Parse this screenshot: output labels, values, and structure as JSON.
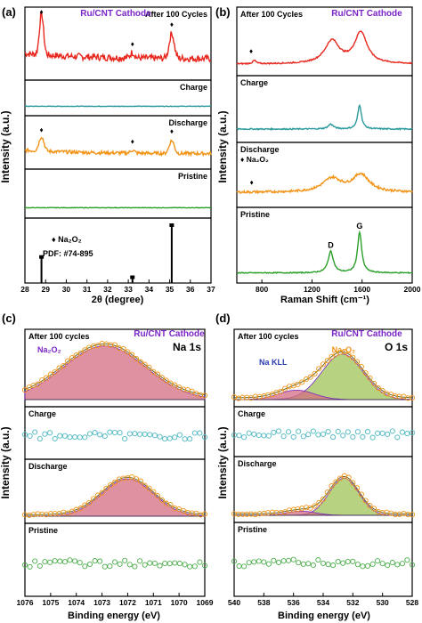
{
  "colors": {
    "red": "#e8281e",
    "teal": "#2a9a9c",
    "orange": "#f29418",
    "green": "#2aa02a",
    "purple": "#7b25c9",
    "black": "#000000",
    "na_fill": "#d36d82",
    "o_fill": "#9fc356",
    "fit_orange": "#f2a250",
    "teal_circle": "#4db8c0",
    "green_circle": "#4cae4c"
  },
  "chart_data": [
    {
      "type": "line",
      "panel": "(a)",
      "title": "Ru/CNT Cathode",
      "xlabel": "2θ (degree)",
      "ylabel": "Intensity (a.u.)",
      "xlim": [
        28,
        37
      ],
      "xticks": [
        "28",
        "29",
        "30",
        "31",
        "32",
        "33",
        "34",
        "35",
        "36",
        "37"
      ],
      "marker_symbol": "♦",
      "subplots": [
        {
          "label": "After 100 Cycles",
          "color": "red",
          "peaks": [
            {
              "x": 28.8,
              "h": 0.9,
              "w": 0.1
            },
            {
              "x": 35.1,
              "h": 0.55,
              "w": 0.12
            },
            {
              "x": 33.2,
              "h": 0.12,
              "w": 0.1
            }
          ],
          "diamonds": [
            28.8,
            33.2,
            35.1
          ],
          "base": 0.35,
          "noise": 0.15
        },
        {
          "label": "Charge",
          "color": "teal",
          "peaks": [],
          "diamonds": [],
          "base": 0.3,
          "noise": 0.04
        },
        {
          "label": "Discharge",
          "color": "orange",
          "peaks": [
            {
              "x": 28.8,
              "h": 0.5,
              "w": 0.12
            },
            {
              "x": 35.1,
              "h": 0.45,
              "w": 0.12
            },
            {
              "x": 33.2,
              "h": 0.1,
              "w": 0.1
            }
          ],
          "diamonds": [
            28.8,
            33.2,
            35.1
          ],
          "base": 0.35,
          "noise": 0.12
        },
        {
          "label": "Pristine",
          "color": "green",
          "peaks": [],
          "diamonds": [],
          "base": 0.2,
          "noise": 0.02
        }
      ],
      "reference": {
        "legend": "Na₂O₂",
        "pdf": "PDF: #74-895",
        "sticks": [
          {
            "x": 28.8,
            "h": 0.45
          },
          {
            "x": 33.2,
            "h": 0.1
          },
          {
            "x": 35.1,
            "h": 1.0
          }
        ]
      }
    },
    {
      "type": "line",
      "panel": "(b)",
      "title": "Ru/CNT Cathode",
      "xlabel": "Raman Shift (cm⁻¹)",
      "ylabel": "Intensity (a.u.)",
      "xlim": [
        600,
        2000
      ],
      "xticks": [
        "800",
        "1200",
        "1600",
        "2000"
      ],
      "subplots": [
        {
          "label": "After 100 Cycles",
          "color": "red",
          "peaks": [
            {
              "x": 1360,
              "h": 0.55,
              "w": 70
            },
            {
              "x": 1590,
              "h": 0.75,
              "w": 60
            },
            {
              "x": 740,
              "h": 0.08,
              "w": 15
            }
          ],
          "diamonds": [
            735
          ],
          "base": 0.15,
          "noise": 0.03
        },
        {
          "label": "Charge",
          "color": "teal",
          "peaks": [
            {
              "x": 1350,
              "h": 0.12,
              "w": 25
            },
            {
              "x": 1580,
              "h": 0.6,
              "w": 18
            }
          ],
          "diamonds": [],
          "base": 0.2,
          "noise": 0.03
        },
        {
          "label": "Discharge",
          "color": "orange",
          "peaks": [
            {
              "x": 1360,
              "h": 0.35,
              "w": 90
            },
            {
              "x": 1590,
              "h": 0.45,
              "w": 80
            }
          ],
          "diamonds": [
            740
          ],
          "base": 0.25,
          "noise": 0.06,
          "legend": "Na₂O₂"
        },
        {
          "label": "Pristine",
          "color": "green",
          "peaks": [
            {
              "x": 1350,
              "h": 0.45,
              "w": 25
            },
            {
              "x": 1580,
              "h": 0.85,
              "w": 20
            }
          ],
          "diamonds": [],
          "base": 0.1,
          "noise": 0.02,
          "peak_labels": [
            {
              "text": "D",
              "x": 1350
            },
            {
              "text": "G",
              "x": 1580
            }
          ]
        }
      ]
    },
    {
      "type": "scatter",
      "panel": "(c)",
      "title": "Ru/CNT Cathode",
      "element_label": "Na 1s",
      "xlabel": "Binding energy (eV)",
      "ylabel": "Intensity (a.u.)",
      "xlim": [
        1076,
        1069
      ],
      "xticks": [
        "1076",
        "1075",
        "1074",
        "1073",
        "1072",
        "1071",
        "1070",
        "1069"
      ],
      "subplots": [
        {
          "label": "After 100 cycles",
          "circle_color": "orange",
          "components": [
            {
              "name": "Na₂O₂",
              "x": 1072.9,
              "h": 0.85,
              "w": 1.6,
              "fill": "na_fill"
            }
          ]
        },
        {
          "label": "Charge",
          "circle_color": "teal_circle",
          "components": []
        },
        {
          "label": "Discharge",
          "circle_color": "orange",
          "components": [
            {
              "x": 1072.0,
              "h": 0.75,
              "w": 1.0,
              "fill": "na_fill"
            }
          ]
        },
        {
          "label": "Pristine",
          "circle_color": "green_circle",
          "components": []
        }
      ]
    },
    {
      "type": "scatter",
      "panel": "(d)",
      "title": "Ru/CNT Cathode",
      "element_label": "O 1s",
      "xlabel": "Binding energy (eV)",
      "ylabel": "Intensity (a.u.)",
      "xlim": [
        540,
        528
      ],
      "xticks": [
        "540",
        "538",
        "536",
        "534",
        "532",
        "530",
        "528"
      ],
      "subplots": [
        {
          "label": "After 100 cycles",
          "circle_color": "orange",
          "components": [
            {
              "name": "Na₂O₂",
              "x": 532.7,
              "h": 0.72,
              "w": 1.4,
              "fill": "o_fill"
            },
            {
              "name": "Na KLL",
              "x": 535.8,
              "h": 0.15,
              "w": 1.2,
              "fill": "na_fill"
            }
          ]
        },
        {
          "label": "Charge",
          "circle_color": "teal_circle",
          "components": []
        },
        {
          "label": "Discharge",
          "circle_color": "orange",
          "components": [
            {
              "x": 532.6,
              "h": 0.72,
              "w": 1.0,
              "fill": "o_fill"
            },
            {
              "x": 535.5,
              "h": 0.08,
              "w": 1.0,
              "fill": "na_fill"
            }
          ]
        },
        {
          "label": "Pristine",
          "circle_color": "green_circle",
          "components": []
        }
      ]
    }
  ]
}
